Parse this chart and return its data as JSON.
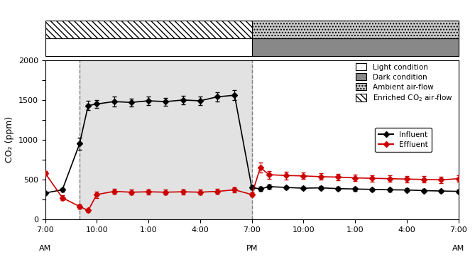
{
  "ylabel": "CO₂ (ppm)",
  "ylim": [
    0,
    2000
  ],
  "time_labels": [
    "7:00",
    "10:00",
    "1:00",
    "4:00",
    "7:00",
    "10:00",
    "1:00",
    "4:00",
    "7:00"
  ],
  "time_label_hours": [
    7,
    10,
    13,
    16,
    19,
    22,
    25,
    28,
    31
  ],
  "am_pm_labels": [
    [
      "AM",
      7
    ],
    [
      "PM",
      19
    ],
    [
      "AM",
      31
    ]
  ],
  "vline1": 9,
  "vline2": 19,
  "xmin": 7,
  "xmax": 31,
  "influent_x": [
    7,
    8,
    9,
    9.5,
    10,
    11,
    12,
    13,
    14,
    15,
    16,
    17,
    18,
    19,
    19.5,
    20,
    21,
    22,
    23,
    24,
    25,
    26,
    27,
    28,
    29,
    30,
    31
  ],
  "influent_y": [
    330,
    370,
    950,
    1430,
    1450,
    1480,
    1470,
    1490,
    1480,
    1500,
    1490,
    1540,
    1560,
    400,
    380,
    410,
    400,
    390,
    395,
    385,
    380,
    375,
    370,
    368,
    360,
    355,
    350
  ],
  "influent_yerr": [
    20,
    20,
    80,
    60,
    50,
    60,
    50,
    55,
    50,
    55,
    50,
    60,
    60,
    30,
    25,
    25,
    20,
    20,
    20,
    20,
    20,
    20,
    20,
    20,
    20,
    20,
    20
  ],
  "effluent_x": [
    7,
    8,
    9,
    9.5,
    10,
    11,
    12,
    13,
    14,
    15,
    16,
    17,
    18,
    19,
    19.5,
    20,
    21,
    22,
    23,
    24,
    25,
    26,
    27,
    28,
    29,
    30,
    31
  ],
  "effluent_y": [
    580,
    270,
    160,
    110,
    310,
    350,
    340,
    345,
    340,
    345,
    340,
    350,
    370,
    310,
    650,
    560,
    550,
    545,
    535,
    530,
    520,
    515,
    510,
    505,
    500,
    495,
    510
  ],
  "effluent_yerr": [
    30,
    30,
    30,
    20,
    40,
    30,
    30,
    30,
    30,
    30,
    30,
    30,
    30,
    30,
    60,
    50,
    50,
    40,
    40,
    40,
    40,
    40,
    40,
    40,
    40,
    40,
    40
  ],
  "influent_color": "#000000",
  "effluent_color": "#cc0000",
  "shade_fill_color": "#d0d0d0",
  "shade_alpha": 0.6,
  "enriched_start": 7,
  "enriched_end": 19,
  "ambient_start": 19,
  "ambient_end": 31,
  "light_start": 7,
  "light_end": 19,
  "dark_start": 19,
  "dark_end": 31
}
